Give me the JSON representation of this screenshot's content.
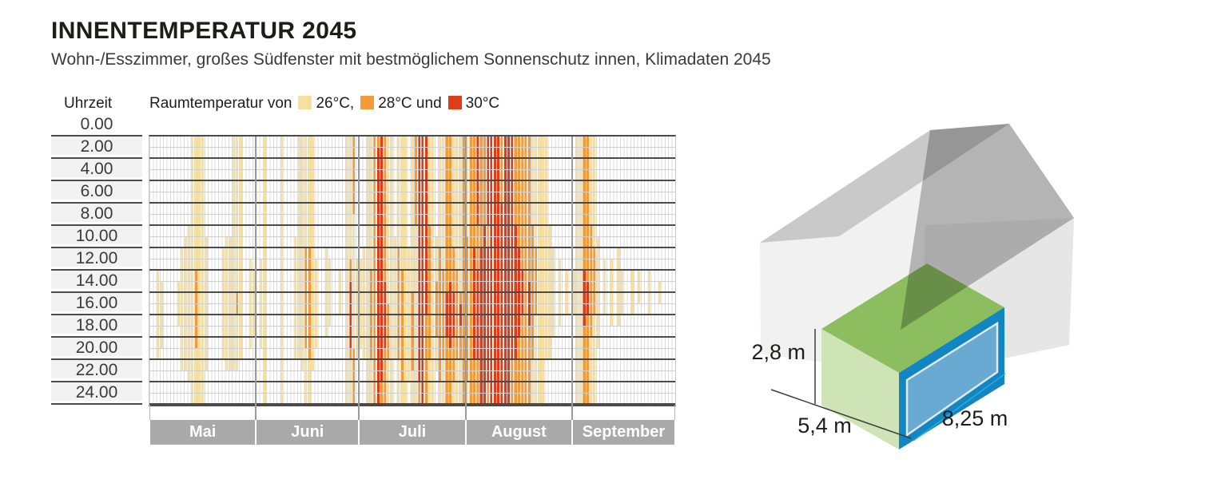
{
  "header": {
    "title": "INNENTEMPERATUR 2045",
    "subtitle": "Wohn-/Esszimmer, großes Südfenster mit bestmöglichem Sonnenschutz innen, Klimadaten 2045"
  },
  "y_axis_title": "Uhrzeit",
  "legend": {
    "prefix": "Raumtemperatur von",
    "items": [
      {
        "swatch": "1",
        "text": "26°C,"
      },
      {
        "swatch": "2",
        "text": "28°C und"
      },
      {
        "swatch": "3",
        "text": "30°C"
      }
    ]
  },
  "chart_data": {
    "type": "heatmap",
    "title": "INNENTEMPERATUR 2045",
    "x_axis": "Tage (Mai bis September)",
    "y_axis": "Uhrzeit (0.00 bis 24.00)",
    "y_ticks": [
      "0.00",
      "2.00",
      "4.00",
      "6.00",
      "8.00",
      "10.00",
      "12.00",
      "14.00",
      "16.00",
      "18.00",
      "20.00",
      "22.00",
      "24.00"
    ],
    "levels": {
      "1": {
        "label": "26°C",
        "color": "#F7DF9E"
      },
      "2": {
        "label": "28°C",
        "color": "#F29B37"
      },
      "3": {
        "label": "30°C",
        "color": "#DF3D17"
      }
    },
    "months": [
      {
        "name": "Mai",
        "days": 31,
        "cells": {
          "3": [
            [
              12,
              20,
              1
            ]
          ],
          "4": [
            [
              13,
              19,
              1
            ]
          ],
          "9": [
            [
              13,
              17,
              1
            ]
          ],
          "10": [
            [
              10,
              21,
              1
            ]
          ],
          "11": [
            [
              9,
              21,
              1
            ]
          ],
          "12": [
            [
              8,
              22,
              1
            ]
          ],
          "13": [
            [
              0,
              24,
              1
            ]
          ],
          "14": [
            [
              0,
              24,
              1
            ],
            [
              12,
              19,
              2
            ]
          ],
          "15": [
            [
              0,
              24,
              1
            ]
          ],
          "16": [
            [
              0,
              24,
              1
            ]
          ],
          "17": [
            [
              9,
              21,
              1
            ]
          ],
          "22": [
            [
              10,
              20,
              1
            ]
          ],
          "23": [
            [
              9,
              21,
              1
            ]
          ],
          "24": [
            [
              9,
              21,
              1
            ]
          ],
          "25": [
            [
              0,
              21,
              1
            ]
          ],
          "26": [
            [
              0,
              21,
              1
            ],
            [
              14,
              16,
              2
            ]
          ],
          "27": [
            [
              0,
              20,
              1
            ]
          ],
          "30": [
            [
              11,
              19,
              1
            ]
          ],
          "31": [
            [
              12,
              18,
              1
            ]
          ]
        }
      },
      {
        "name": "Juni",
        "days": 30,
        "cells": {
          "2": [
            [
              11,
              19,
              1
            ]
          ],
          "3": [
            [
              0,
              24,
              1
            ]
          ],
          "8": [
            [
              0,
              24,
              1
            ]
          ],
          "12": [
            [
              9,
              20,
              1
            ]
          ],
          "13": [
            [
              0,
              20,
              1
            ]
          ],
          "14": [
            [
              0,
              21,
              1
            ]
          ],
          "15": [
            [
              0,
              24,
              1
            ],
            [
              10,
              19,
              2
            ]
          ],
          "16": [
            [
              0,
              24,
              1
            ],
            [
              10,
              20,
              2
            ]
          ],
          "17": [
            [
              0,
              21,
              1
            ]
          ],
          "18": [
            [
              11,
              19,
              1
            ]
          ],
          "21": [
            [
              10,
              18,
              1
            ]
          ],
          "22": [
            [
              11,
              17,
              1
            ]
          ],
          "25": [
            [
              12,
              16,
              1
            ]
          ],
          "27": [
            [
              0,
              24,
              1
            ]
          ],
          "28": [
            [
              0,
              24,
              1
            ],
            [
              11,
              20,
              2
            ],
            [
              13,
              19,
              3
            ]
          ],
          "29": [
            [
              0,
              24,
              1
            ],
            [
              0,
              7,
              2
            ],
            [
              19,
              24,
              2
            ]
          ],
          "30": [
            [
              11,
              20,
              1
            ]
          ]
        }
      },
      {
        "name": "Juli",
        "days": 31,
        "cells": {
          "1": [
            [
              11,
              19,
              1
            ]
          ],
          "2": [
            [
              10,
              20,
              1
            ]
          ],
          "3": [
            [
              0,
              24,
              1
            ]
          ],
          "4": [
            [
              0,
              24,
              1
            ],
            [
              12,
              20,
              2
            ]
          ],
          "5": [
            [
              0,
              24,
              2
            ]
          ],
          "6": [
            [
              0,
              24,
              2
            ],
            [
              1,
              24,
              3
            ]
          ],
          "7": [
            [
              0,
              24,
              2
            ],
            [
              0,
              22,
              3
            ]
          ],
          "8": [
            [
              0,
              24,
              2
            ],
            [
              13,
              19,
              3
            ]
          ],
          "9": [
            [
              0,
              24,
              1
            ],
            [
              15,
              20,
              2
            ]
          ],
          "10": [
            [
              0,
              24,
              1
            ]
          ],
          "11": [
            [
              9,
              20,
              1
            ]
          ],
          "12": [
            [
              0,
              24,
              1
            ],
            [
              10,
              20,
              2
            ]
          ],
          "13": [
            [
              0,
              24,
              1
            ],
            [
              12,
              22,
              2
            ]
          ],
          "14": [
            [
              0,
              24,
              1
            ]
          ],
          "15": [
            [
              10,
              22,
              1
            ]
          ],
          "16": [
            [
              0,
              24,
              1
            ],
            [
              14,
              21,
              2
            ]
          ],
          "17": [
            [
              0,
              24,
              1
            ],
            [
              0,
              8,
              2
            ]
          ],
          "18": [
            [
              0,
              24,
              2
            ],
            [
              0,
              22,
              3
            ]
          ],
          "19": [
            [
              0,
              24,
              3
            ]
          ],
          "20": [
            [
              0,
              24,
              2
            ],
            [
              0,
              16,
              3
            ]
          ],
          "21": [
            [
              0,
              24,
              1
            ],
            [
              8,
              20,
              2
            ]
          ],
          "22": [
            [
              0,
              24,
              1
            ]
          ],
          "23": [
            [
              9,
              21,
              1
            ],
            [
              13,
              18,
              2
            ]
          ],
          "24": [
            [
              0,
              24,
              1
            ],
            [
              10,
              22,
              2
            ]
          ],
          "25": [
            [
              0,
              24,
              1
            ],
            [
              12,
              20,
              2
            ]
          ],
          "26": [
            [
              0,
              24,
              2
            ],
            [
              14,
              18,
              3
            ]
          ],
          "27": [
            [
              0,
              24,
              2
            ],
            [
              13,
              19,
              3
            ]
          ],
          "28": [
            [
              0,
              24,
              1
            ],
            [
              10,
              22,
              2
            ],
            [
              14,
              18,
              3
            ]
          ],
          "29": [
            [
              0,
              24,
              1
            ],
            [
              12,
              20,
              2
            ]
          ],
          "30": [
            [
              0,
              24,
              1
            ],
            [
              14,
              20,
              2
            ],
            [
              15,
              17,
              3
            ]
          ],
          "31": [
            [
              0,
              24,
              2
            ]
          ]
        }
      },
      {
        "name": "August",
        "days": 31,
        "cells": {
          "1": [
            [
              0,
              24,
              1
            ],
            [
              9,
              22,
              2
            ]
          ],
          "2": [
            [
              0,
              24,
              2
            ]
          ],
          "3": [
            [
              0,
              24,
              2
            ],
            [
              10,
              20,
              3
            ]
          ],
          "4": [
            [
              0,
              24,
              2
            ],
            [
              0,
              8,
              3
            ],
            [
              12,
              20,
              3
            ]
          ],
          "5": [
            [
              0,
              24,
              2
            ],
            [
              10,
              24,
              3
            ]
          ],
          "6": [
            [
              0,
              24,
              2
            ],
            [
              8,
              24,
              3
            ]
          ],
          "7": [
            [
              0,
              24,
              2
            ],
            [
              0,
              8,
              3
            ],
            [
              10,
              22,
              3
            ]
          ],
          "8": [
            [
              0,
              24,
              3
            ]
          ],
          "9": [
            [
              0,
              24,
              3
            ]
          ],
          "10": [
            [
              0,
              24,
              3
            ]
          ],
          "11": [
            [
              0,
              24,
              2
            ],
            [
              6,
              24,
              3
            ]
          ],
          "12": [
            [
              0,
              24,
              3
            ]
          ],
          "13": [
            [
              0,
              24,
              3
            ]
          ],
          "14": [
            [
              0,
              24,
              2
            ],
            [
              0,
              20,
              3
            ]
          ],
          "15": [
            [
              0,
              24,
              2
            ],
            [
              8,
              20,
              3
            ]
          ],
          "16": [
            [
              0,
              24,
              2
            ],
            [
              10,
              18,
              3
            ]
          ],
          "17": [
            [
              0,
              24,
              2
            ],
            [
              12,
              16,
              3
            ]
          ],
          "18": [
            [
              0,
              24,
              2
            ]
          ],
          "19": [
            [
              0,
              24,
              2
            ],
            [
              13,
              17,
              3
            ]
          ],
          "20": [
            [
              0,
              24,
              1
            ],
            [
              8,
              20,
              2
            ]
          ],
          "21": [
            [
              0,
              24,
              1
            ],
            [
              10,
              16,
              2
            ]
          ],
          "22": [
            [
              0,
              24,
              1
            ]
          ],
          "23": [
            [
              0,
              24,
              1
            ]
          ],
          "24": [
            [
              0,
              20,
              1
            ]
          ],
          "25": [
            [
              8,
              20,
              1
            ]
          ],
          "26": [
            [
              10,
              18,
              1
            ]
          ],
          "28": [
            [
              11,
              17,
              1
            ]
          ],
          "30": [
            [
              12,
              16,
              1
            ]
          ]
        }
      },
      {
        "name": "September",
        "days": 30,
        "cells": {
          "1": [
            [
              12,
              16,
              1
            ]
          ],
          "2": [
            [
              0,
              24,
              1
            ]
          ],
          "3": [
            [
              0,
              24,
              1
            ]
          ],
          "4": [
            [
              0,
              24,
              2
            ],
            [
              12,
              17,
              3
            ]
          ],
          "5": [
            [
              0,
              24,
              2
            ],
            [
              13,
              16,
              3
            ]
          ],
          "6": [
            [
              0,
              24,
              1
            ],
            [
              8,
              18,
              2
            ]
          ],
          "7": [
            [
              0,
              24,
              1
            ],
            [
              10,
              16,
              2
            ]
          ],
          "8": [
            [
              9,
              19,
              1
            ]
          ],
          "10": [
            [
              11,
              16,
              1
            ]
          ],
          "12": [
            [
              11,
              17,
              1
            ]
          ],
          "14": [
            [
              10,
              17,
              1
            ]
          ],
          "15": [
            [
              12,
              16,
              1
            ]
          ],
          "18": [
            [
              12,
              16,
              1
            ]
          ],
          "20": [
            [
              12,
              15,
              1
            ]
          ],
          "23": [
            [
              12,
              16,
              1
            ]
          ],
          "26": [
            [
              13,
              15,
              1
            ]
          ]
        }
      }
    ]
  },
  "house": {
    "dim_height": "2,8 m",
    "dim_depth": "5,4 m",
    "dim_length": "8,25 m"
  }
}
